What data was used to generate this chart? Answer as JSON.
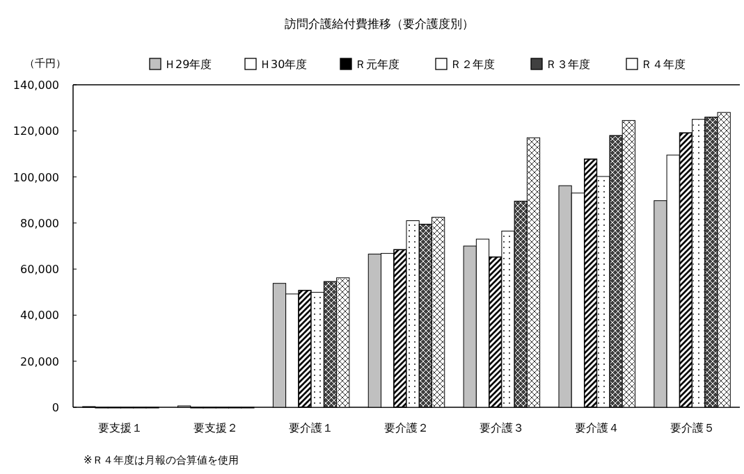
{
  "chart_data": {
    "type": "bar",
    "title": "訪問介護給付費推移（要介護度別）",
    "ylabel": "（千円）",
    "categories": [
      "要支援１",
      "要支援２",
      "要介護１",
      "要介護２",
      "要介護３",
      "要介護４",
      "要介護５"
    ],
    "series": [
      {
        "name": "Ｈ29年度",
        "color": "#c0c0c0",
        "values": [
          300,
          600,
          53800,
          66500,
          70000,
          96200,
          89700
        ]
      },
      {
        "name": "Ｈ30年度",
        "color": "#ffffff",
        "values": [
          0,
          0,
          49200,
          66800,
          73000,
          93000,
          109500
        ]
      },
      {
        "name": "Ｒ元年度",
        "color": "#000000",
        "values": [
          0,
          0,
          50800,
          68500,
          65300,
          107800,
          119200
        ]
      },
      {
        "name": "Ｒ２年度",
        "color": "#ffffff",
        "values": [
          0,
          0,
          49900,
          81000,
          76500,
          100200,
          125000
        ]
      },
      {
        "name": "Ｒ３年度",
        "color": "#404040",
        "values": [
          0,
          0,
          54600,
          79500,
          89500,
          118000,
          126000
        ]
      },
      {
        "name": "Ｒ４年度",
        "color": "#ffffff",
        "values": [
          0,
          0,
          56200,
          82500,
          117000,
          124500,
          128000
        ]
      }
    ],
    "ylim": [
      0,
      140000
    ],
    "yticks": [
      {
        "value": 0,
        "label": "0"
      },
      {
        "value": 20000,
        "label": "20,000"
      },
      {
        "value": 40000,
        "label": "40,000"
      },
      {
        "value": 60000,
        "label": "60,000"
      },
      {
        "value": 80000,
        "label": "80,000"
      },
      {
        "value": 100000,
        "label": "100,000"
      },
      {
        "value": 120000,
        "label": "120,000"
      },
      {
        "value": 140000,
        "label": "140,000"
      }
    ],
    "grid": false,
    "legend": "top",
    "annotations": [
      "※Ｒ４年度は月報の合算値を使用"
    ]
  }
}
